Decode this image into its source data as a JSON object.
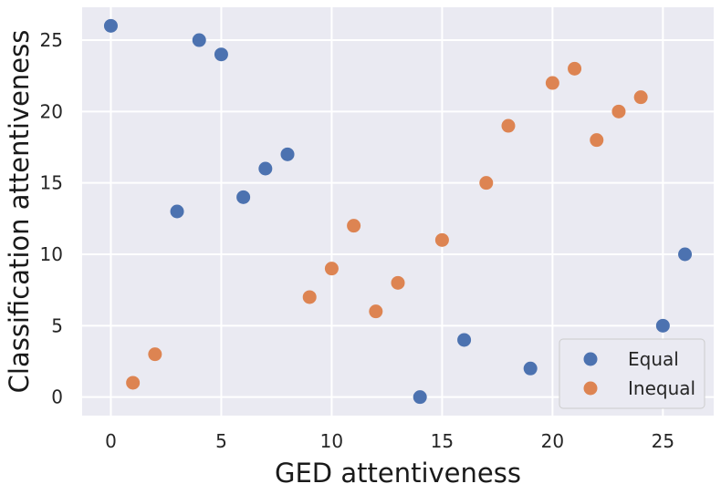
{
  "chart_data": {
    "type": "scatter",
    "xlabel": "GED attentiveness",
    "ylabel": "Classification attentiveness",
    "xlim": [
      -1.3,
      27.3
    ],
    "ylim": [
      -1.3,
      27.3
    ],
    "xticks": [
      0,
      5,
      10,
      15,
      20,
      25
    ],
    "yticks": [
      0,
      5,
      10,
      15,
      20,
      25
    ],
    "grid": true,
    "legend_position": "bottom-right",
    "series": [
      {
        "name": "Equal",
        "color": "#4c72b0",
        "points": [
          {
            "x": 0,
            "y": 26
          },
          {
            "x": 3,
            "y": 13
          },
          {
            "x": 4,
            "y": 25
          },
          {
            "x": 5,
            "y": 24
          },
          {
            "x": 6,
            "y": 14
          },
          {
            "x": 7,
            "y": 16
          },
          {
            "x": 8,
            "y": 17
          },
          {
            "x": 14,
            "y": 0
          },
          {
            "x": 16,
            "y": 4
          },
          {
            "x": 19,
            "y": 2
          },
          {
            "x": 25,
            "y": 5
          },
          {
            "x": 26,
            "y": 10
          }
        ]
      },
      {
        "name": "Inequal",
        "color": "#dd8452",
        "points": [
          {
            "x": 1,
            "y": 1
          },
          {
            "x": 2,
            "y": 3
          },
          {
            "x": 9,
            "y": 7
          },
          {
            "x": 10,
            "y": 9
          },
          {
            "x": 11,
            "y": 12
          },
          {
            "x": 12,
            "y": 6
          },
          {
            "x": 13,
            "y": 8
          },
          {
            "x": 15,
            "y": 11
          },
          {
            "x": 17,
            "y": 15
          },
          {
            "x": 18,
            "y": 19
          },
          {
            "x": 20,
            "y": 22
          },
          {
            "x": 21,
            "y": 23
          },
          {
            "x": 22,
            "y": 18
          },
          {
            "x": 23,
            "y": 20
          },
          {
            "x": 24,
            "y": 21
          }
        ]
      }
    ]
  },
  "colors": {
    "plot_background": "#eaeaf2",
    "grid": "#ffffff",
    "legend_border": "#cccccc"
  }
}
